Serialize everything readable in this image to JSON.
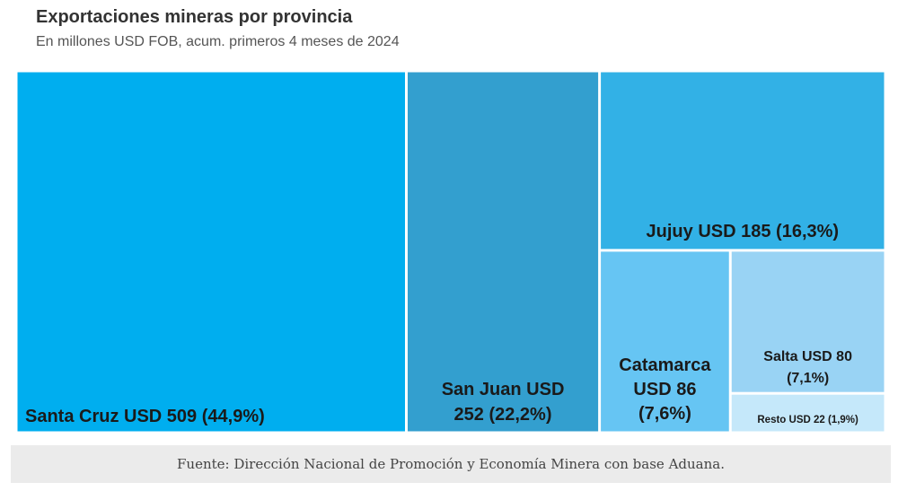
{
  "chart_data": {
    "type": "treemap",
    "title": "Exportaciones mineras por provincia",
    "subtitle": "En millones USD FOB, acum. primeros 4 meses de 2024",
    "unit": "millones USD FOB",
    "items": [
      {
        "name": "Santa Cruz",
        "value": 509,
        "share": 44.9,
        "label_lines": [
          "Santa Cruz USD 509 (44,9%)"
        ],
        "color": "#00aeef"
      },
      {
        "name": "San Juan",
        "value": 252,
        "share": 22.2,
        "label_lines": [
          "San Juan USD",
          "252 (22,2%)"
        ],
        "color": "#339fcf"
      },
      {
        "name": "Jujuy",
        "value": 185,
        "share": 16.3,
        "label_lines": [
          "Jujuy USD 185 (16,3%)"
        ],
        "color": "#32b1e6"
      },
      {
        "name": "Catamarca",
        "value": 86,
        "share": 7.6,
        "label_lines": [
          "Catamarca",
          "USD 86",
          "(7,6%)"
        ],
        "color": "#66c5f3"
      },
      {
        "name": "Salta",
        "value": 80,
        "share": 7.1,
        "label_lines": [
          "Salta USD 80",
          "(7,1%)"
        ],
        "color": "#99d3f4"
      },
      {
        "name": "Resto",
        "value": 22,
        "share": 1.9,
        "label_lines": [
          "Resto USD 22 (1,9%)"
        ],
        "color": "#c5e8fa"
      }
    ]
  },
  "source": "Fuente: Dirección Nacional de Promoción y Economía Minera con base Aduana."
}
